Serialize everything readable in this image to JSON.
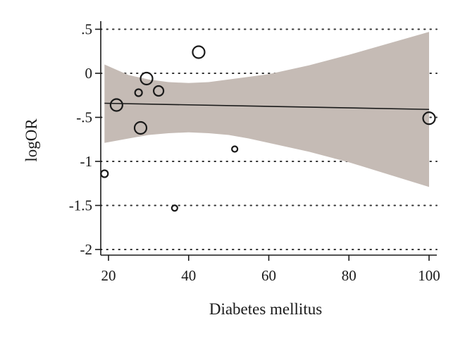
{
  "chart_data": {
    "type": "scatter",
    "title": "",
    "xlabel": "Diabetes mellitus",
    "ylabel": "logOR",
    "xlim": [
      18,
      101
    ],
    "ylim": [
      -2.08,
      0.52
    ],
    "x_ticks": [
      20,
      40,
      60,
      80,
      100
    ],
    "x_tick_labels": [
      "20",
      "40",
      "60",
      "80",
      "100"
    ],
    "y_ticks": [
      0.5,
      0,
      -0.5,
      -1,
      -1.5,
      -2
    ],
    "y_tick_labels": [
      ".5",
      "0",
      "-.5",
      "-1",
      "-1.5",
      "-2"
    ],
    "grid": "horizontal dotted lines at y ticks",
    "points": [
      {
        "x": 19,
        "y": -1.14,
        "size": "small"
      },
      {
        "x": 22,
        "y": -0.36,
        "size": "large"
      },
      {
        "x": 27.5,
        "y": -0.22,
        "size": "small"
      },
      {
        "x": 28,
        "y": -0.62,
        "size": "large"
      },
      {
        "x": 29.5,
        "y": -0.06,
        "size": "large"
      },
      {
        "x": 32.5,
        "y": -0.2,
        "size": "medium"
      },
      {
        "x": 36.5,
        "y": -1.53,
        "size": "tiny"
      },
      {
        "x": 42.5,
        "y": 0.24,
        "size": "large"
      },
      {
        "x": 51.5,
        "y": -0.86,
        "size": "tiny"
      },
      {
        "x": 100,
        "y": -0.51,
        "size": "large"
      }
    ],
    "fit_line": {
      "x": [
        19,
        100
      ],
      "y": [
        -0.34,
        -0.41
      ]
    },
    "confidence_band": {
      "x": [
        19,
        25,
        30,
        35,
        40,
        45,
        50,
        55,
        60,
        70,
        80,
        90,
        100
      ],
      "upper": [
        0.1,
        -0.02,
        -0.07,
        -0.1,
        -0.11,
        -0.1,
        -0.07,
        -0.04,
        -0.01,
        0.09,
        0.21,
        0.34,
        0.47
      ],
      "lower": [
        -0.79,
        -0.74,
        -0.7,
        -0.68,
        -0.67,
        -0.68,
        -0.7,
        -0.74,
        -0.79,
        -0.89,
        -1.01,
        -1.15,
        -1.29
      ]
    },
    "colors": {
      "band": "#c5bbb5",
      "line": "#1a1a1a",
      "marker": "#1a1a1a",
      "grid": "#333333"
    }
  }
}
